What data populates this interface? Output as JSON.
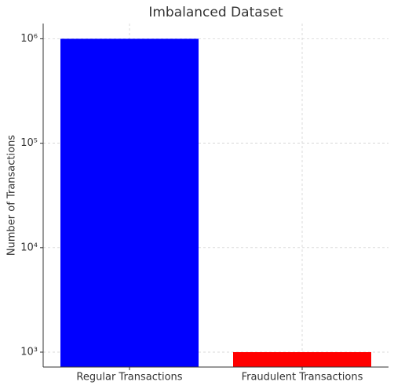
{
  "chart_data": {
    "type": "bar",
    "title": "Imbalanced Dataset",
    "y_label": "Number of Transactions",
    "categories": [
      "Regular Transactions",
      "Fraudulent Transactions"
    ],
    "values": [
      1000000,
      1000
    ],
    "colors": [
      "#0000ff",
      "#ff0000"
    ],
    "log_scale": true,
    "grid": true,
    "ylim": [
      720,
      1400000
    ],
    "yticks": [
      {
        "value": 1000,
        "label": "10³"
      },
      {
        "value": 10000,
        "label": "10⁴"
      },
      {
        "value": 100000,
        "label": "10⁵"
      },
      {
        "value": 1000000,
        "label": "10⁶"
      }
    ]
  }
}
